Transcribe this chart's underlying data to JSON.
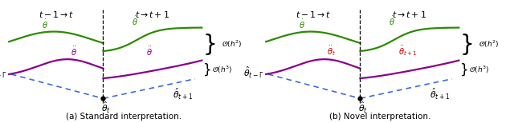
{
  "fig_width": 6.4,
  "fig_height": 1.54,
  "dpi": 100,
  "background": "#ffffff",
  "green_color": "#2d8b00",
  "purple_color": "#8b008b",
  "blue_dashed_color": "#4169e1",
  "black_color": "#000000",
  "red_color": "#cc0000",
  "caption_a": "(a) Standard interpretation.",
  "caption_b": "(b) Novel interpretation."
}
